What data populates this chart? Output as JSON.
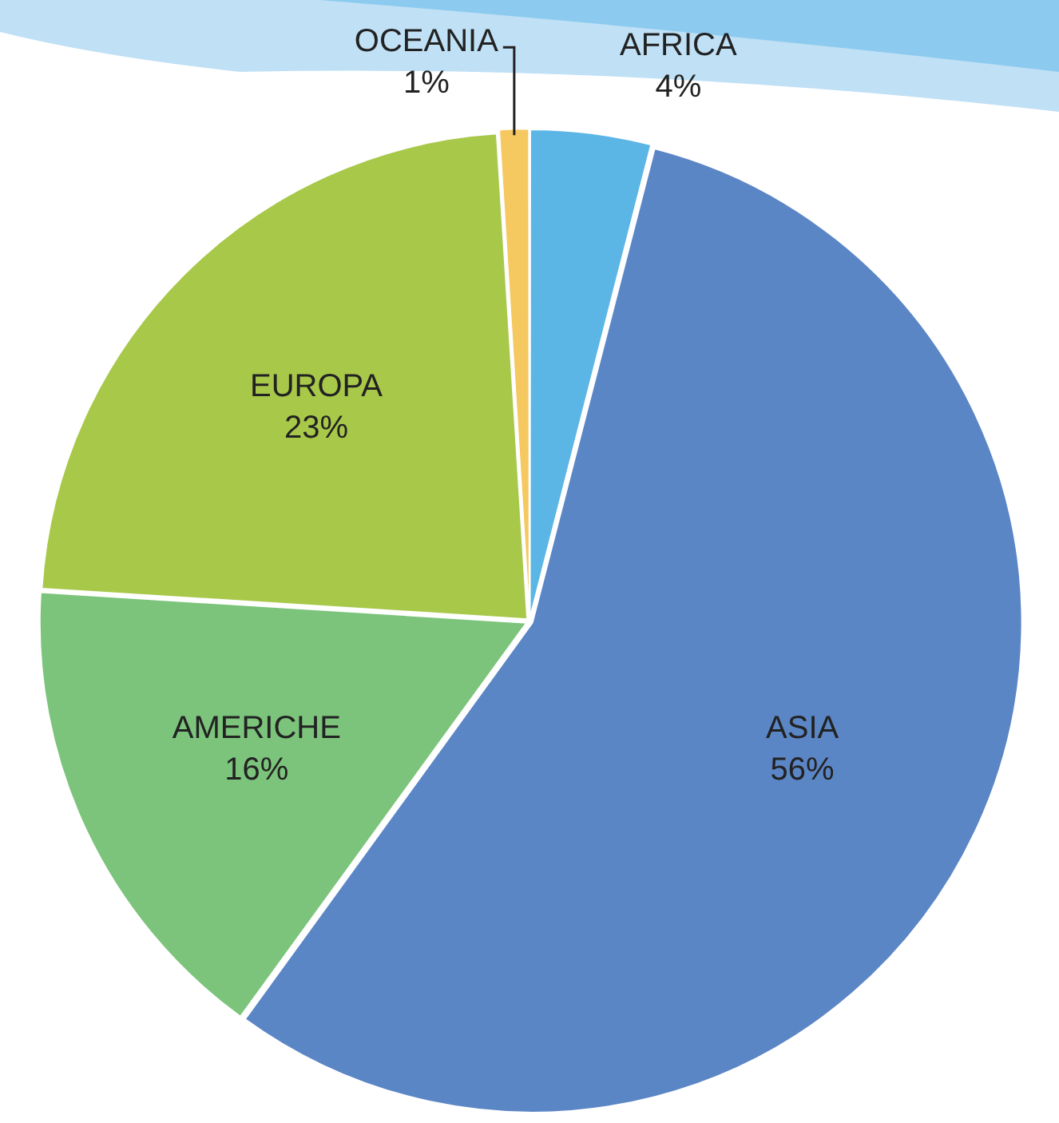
{
  "chart_data": {
    "type": "pie",
    "categories": [
      "AFRICA",
      "ASIA",
      "AMERICHE",
      "EUROPA",
      "OCEANIA"
    ],
    "values": [
      4,
      56,
      16,
      23,
      1
    ],
    "value_labels": [
      "4%",
      "56%",
      "16%",
      "23%",
      "1%"
    ],
    "colors": [
      "#5bb6e6",
      "#5b86c6",
      "#7cc47c",
      "#a8c84a",
      "#f5c860"
    ],
    "legend": false
  }
}
